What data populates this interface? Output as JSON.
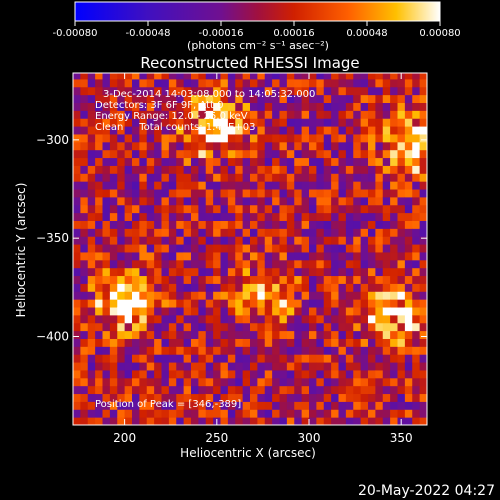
{
  "colorbar": {
    "tick_labels": [
      "-0.00080",
      "-0.00048",
      "-0.00016",
      "0.00016",
      "0.00048",
      "0.00080"
    ],
    "units_label": "(photons cm⁻² s⁻¹ asec⁻²)"
  },
  "chart_data": {
    "type": "heatmap",
    "title": "Reconstructed RHESSI Image",
    "xlabel": "Heliocentric X (arcsec)",
    "ylabel": "Heliocentric Y (arcsec)",
    "xlim": [
      172,
      364
    ],
    "ylim": [
      -445,
      -266
    ],
    "x_ticks": [
      200,
      250,
      300,
      350
    ],
    "y_ticks": [
      -300,
      -350,
      -400
    ],
    "x_tick_labels": [
      "200",
      "250",
      "300",
      "350"
    ],
    "y_tick_labels": [
      "−300",
      "−350",
      "−400"
    ],
    "color_range": [
      -0.0008,
      0.0008
    ],
    "colormap": "blue-purple-red-yellow-white",
    "annotations": [
      "3-Dec-2014 14:03:08.000 to 14:05:32.000",
      "Detectors: 3F 6F 9F, Att 0",
      "Energy Range: 12.0 - 25.0 keV",
      "Clean     Total counts: 1.40E+03"
    ],
    "peak_label": "Position of Peak = [346,-389]",
    "peak_position": [
      346,
      -389
    ],
    "bright_sources": [
      {
        "x": 248,
        "y": -292,
        "value": 0.0008
      },
      {
        "x": 355,
        "y": -302,
        "value": 0.0007
      },
      {
        "x": 200,
        "y": -382,
        "value": 0.0007
      },
      {
        "x": 346,
        "y": -389,
        "value": 0.0008
      },
      {
        "x": 276,
        "y": -380,
        "value": 0.0006
      }
    ]
  },
  "footer": {
    "timestamp": "20-May-2022 04:27"
  }
}
